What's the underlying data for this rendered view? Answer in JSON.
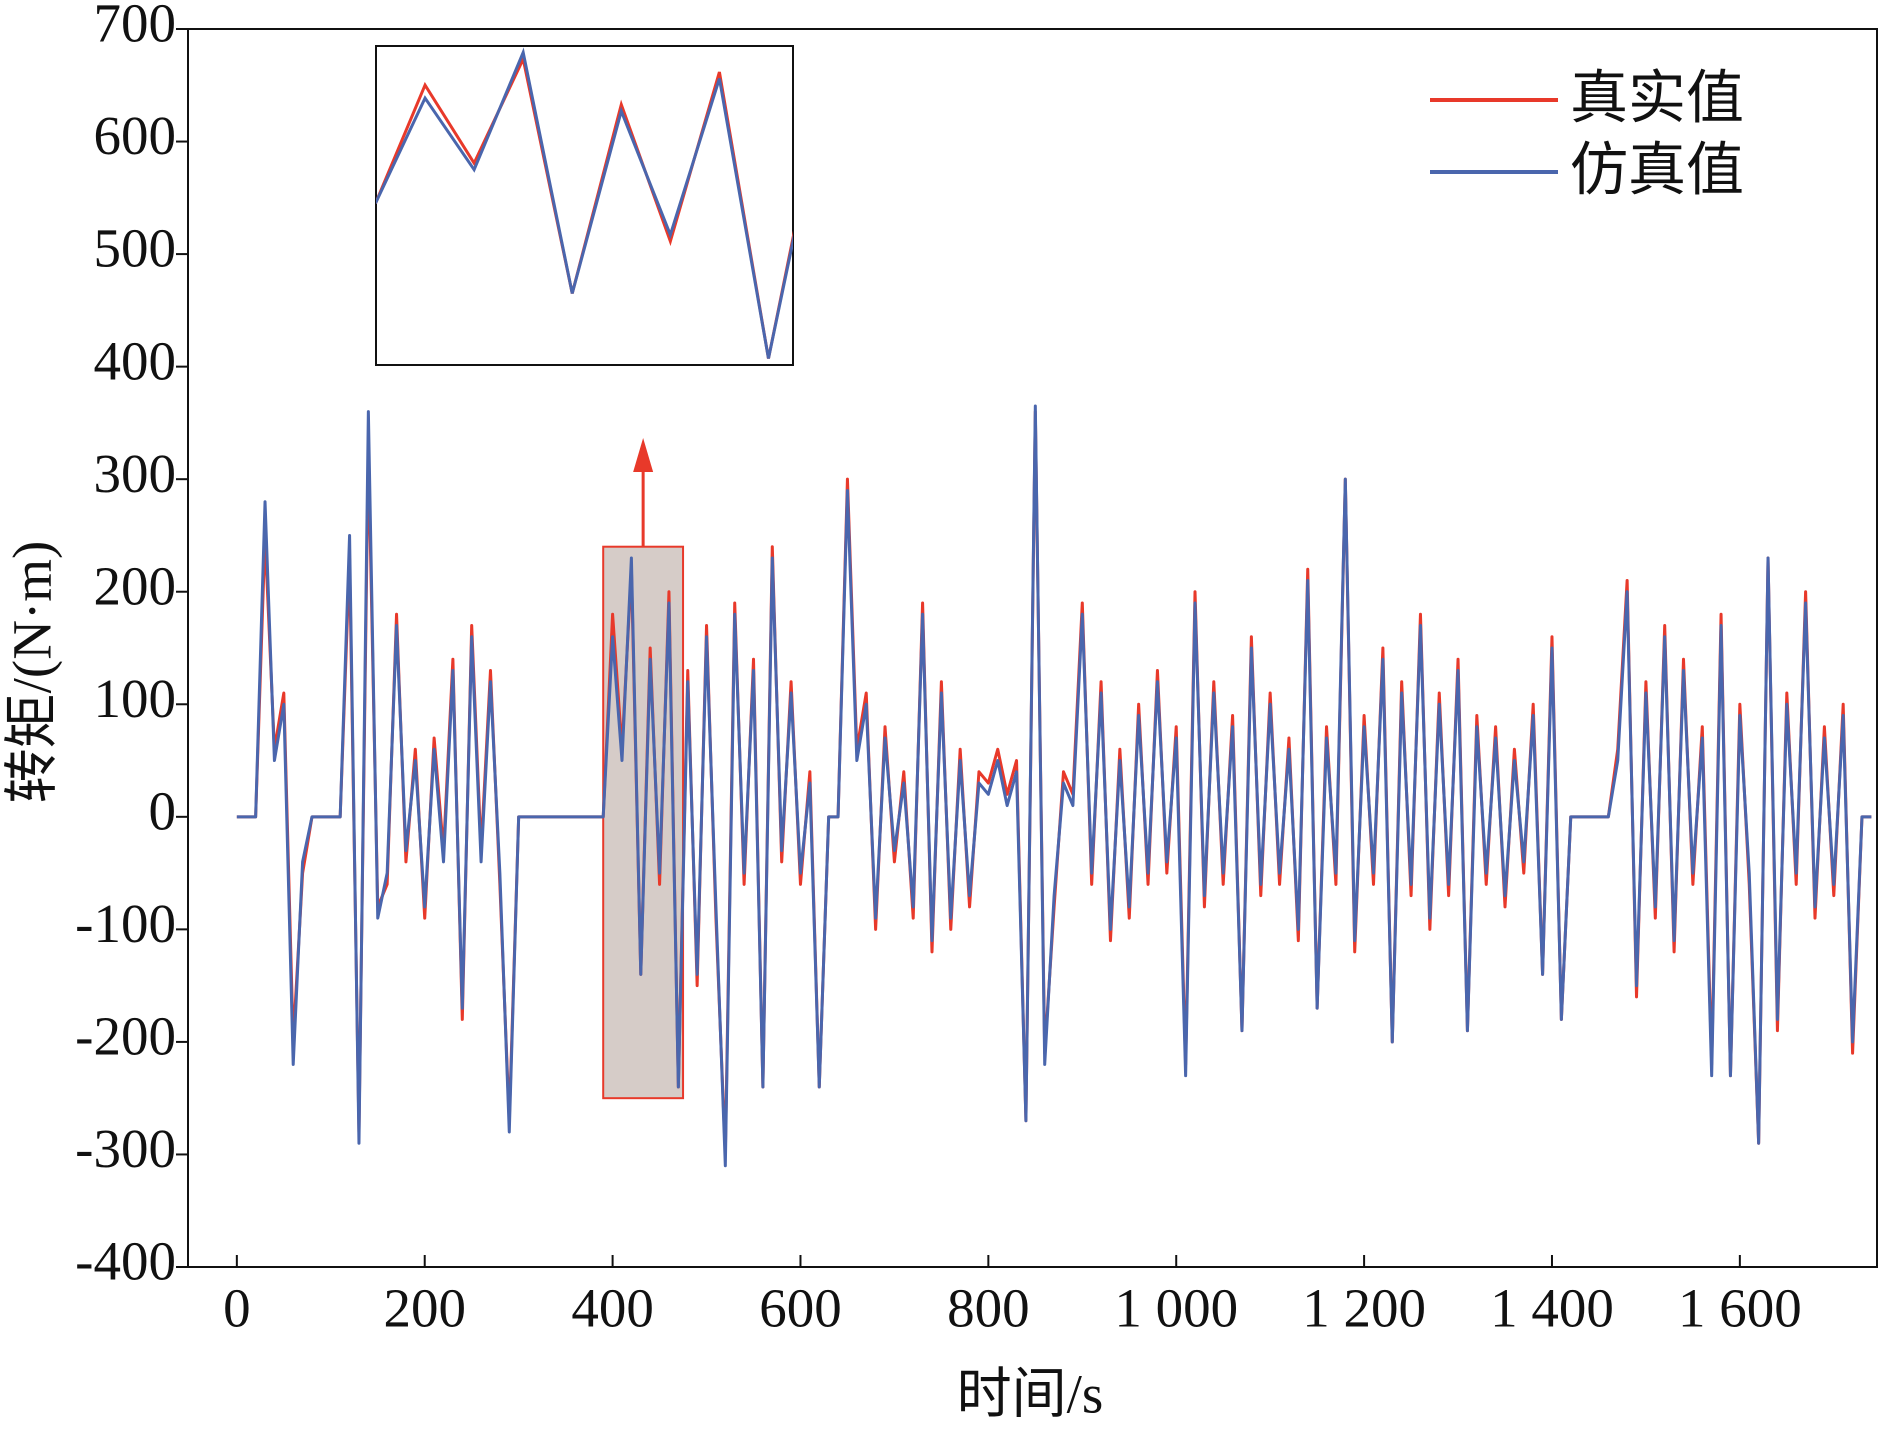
{
  "chart_data": {
    "type": "line",
    "xlabel": "时间/s",
    "ylabel": "转矩/(N·m)",
    "xlim": [
      -52,
      1746
    ],
    "ylim": [
      -400,
      700
    ],
    "xticks": [
      0,
      200,
      400,
      600,
      800,
      {
        "value": 1000,
        "label": "1 000"
      },
      {
        "value": 1200,
        "label": "1 200"
      },
      {
        "value": 1400,
        "label": "1 400"
      },
      {
        "value": 1600,
        "label": "1 600"
      }
    ],
    "yticks": [
      -400,
      -300,
      -200,
      -100,
      0,
      100,
      200,
      300,
      400,
      500,
      600,
      700
    ],
    "legend": "upper right",
    "highlight": {
      "xlim": [
        390,
        475
      ],
      "ylim": [
        -250,
        240
      ]
    },
    "x": [
      0,
      10,
      20,
      30,
      40,
      50,
      60,
      70,
      80,
      90,
      100,
      110,
      120,
      130,
      140,
      150,
      160,
      170,
      180,
      190,
      200,
      210,
      220,
      230,
      240,
      250,
      260,
      270,
      280,
      290,
      300,
      310,
      320,
      330,
      340,
      350,
      360,
      370,
      380,
      390,
      400,
      410,
      420,
      430,
      440,
      450,
      460,
      470,
      480,
      490,
      500,
      510,
      520,
      530,
      540,
      550,
      560,
      570,
      580,
      590,
      600,
      610,
      620,
      630,
      640,
      650,
      660,
      670,
      680,
      690,
      700,
      710,
      720,
      730,
      740,
      750,
      760,
      770,
      780,
      790,
      800,
      810,
      820,
      830,
      840,
      850,
      860,
      870,
      880,
      890,
      900,
      910,
      920,
      930,
      940,
      950,
      960,
      970,
      980,
      990,
      1000,
      1010,
      1020,
      1030,
      1040,
      1050,
      1060,
      1070,
      1080,
      1090,
      1100,
      1110,
      1120,
      1130,
      1140,
      1150,
      1160,
      1170,
      1180,
      1190,
      1200,
      1210,
      1220,
      1230,
      1240,
      1250,
      1260,
      1270,
      1280,
      1290,
      1300,
      1310,
      1320,
      1330,
      1340,
      1350,
      1360,
      1370,
      1380,
      1390,
      1400,
      1410,
      1420,
      1430,
      1440,
      1450,
      1460,
      1470,
      1480,
      1490,
      1500,
      1510,
      1520,
      1530,
      1540,
      1550,
      1560,
      1570,
      1580,
      1590,
      1600,
      1610,
      1620,
      1630,
      1640,
      1650,
      1660,
      1670,
      1680,
      1690,
      1700,
      1710,
      1720,
      1730,
      1740
    ],
    "series": [
      {
        "name": "真实值",
        "color": "#e8392a",
        "values": [
          0,
          0,
          0,
          250,
          60,
          110,
          -200,
          -50,
          0,
          0,
          0,
          0,
          230,
          -280,
          330,
          -80,
          -60,
          180,
          -40,
          60,
          -90,
          70,
          -30,
          140,
          -180,
          170,
          -30,
          130,
          -60,
          -270,
          0,
          0,
          0,
          0,
          0,
          0,
          0,
          0,
          0,
          0,
          180,
          60,
          220,
          -140,
          150,
          -60,
          200,
          -240,
          130,
          -150,
          170,
          -90,
          -300,
          190,
          -60,
          140,
          -240,
          240,
          -40,
          120,
          -60,
          40,
          -240,
          0,
          0,
          300,
          60,
          110,
          -100,
          80,
          -40,
          40,
          -90,
          190,
          -120,
          120,
          -100,
          60,
          -80,
          40,
          30,
          60,
          20,
          50,
          -270,
          360,
          -210,
          -80,
          40,
          20,
          190,
          -60,
          120,
          -110,
          60,
          -90,
          100,
          -60,
          130,
          -50,
          80,
          -220,
          200,
          -80,
          120,
          -60,
          90,
          -190,
          160,
          -70,
          110,
          -60,
          70,
          -110,
          220,
          -170,
          80,
          -60,
          300,
          -120,
          90,
          -60,
          150,
          -200,
          120,
          -70,
          180,
          -100,
          110,
          -70,
          140,
          -190,
          90,
          -60,
          80,
          -80,
          60,
          -50,
          100,
          -140,
          160,
          -180,
          0,
          0,
          0,
          0,
          0,
          60,
          210,
          -160,
          120,
          -90,
          170,
          -120,
          140,
          -60,
          80,
          -220,
          180,
          -230,
          100,
          -60,
          -290,
          230,
          -190,
          110,
          -60,
          200,
          -90,
          80,
          -70,
          100,
          -210,
          0,
          0
        ]
      },
      {
        "name": "仿真值",
        "color": "#4a66ad",
        "values": [
          0,
          0,
          0,
          280,
          50,
          100,
          -220,
          -40,
          0,
          0,
          0,
          0,
          250,
          -290,
          360,
          -90,
          -50,
          170,
          -30,
          50,
          -80,
          60,
          -40,
          130,
          -170,
          160,
          -40,
          120,
          -50,
          -280,
          0,
          0,
          0,
          0,
          0,
          0,
          0,
          0,
          0,
          0,
          160,
          50,
          230,
          -140,
          140,
          -50,
          190,
          -240,
          120,
          -140,
          160,
          -80,
          -310,
          180,
          -50,
          130,
          -240,
          230,
          -30,
          110,
          -50,
          30,
          -240,
          0,
          0,
          290,
          50,
          100,
          -90,
          70,
          -30,
          30,
          -80,
          180,
          -110,
          110,
          -90,
          50,
          -70,
          30,
          20,
          50,
          10,
          40,
          -270,
          365,
          -220,
          -70,
          30,
          10,
          180,
          -50,
          110,
          -100,
          50,
          -80,
          90,
          -50,
          120,
          -40,
          70,
          -230,
          190,
          -70,
          110,
          -50,
          80,
          -190,
          150,
          -60,
          100,
          -50,
          60,
          -100,
          210,
          -170,
          70,
          -50,
          300,
          -110,
          80,
          -50,
          140,
          -200,
          110,
          -60,
          170,
          -90,
          100,
          -60,
          130,
          -190,
          80,
          -50,
          70,
          -70,
          50,
          -40,
          90,
          -140,
          150,
          -180,
          0,
          0,
          0,
          0,
          0,
          50,
          200,
          -150,
          110,
          -80,
          160,
          -110,
          130,
          -50,
          70,
          -230,
          170,
          -230,
          90,
          -50,
          -290,
          230,
          -180,
          100,
          -50,
          190,
          -80,
          70,
          -60,
          90,
          -200,
          0,
          0
        ]
      }
    ]
  }
}
